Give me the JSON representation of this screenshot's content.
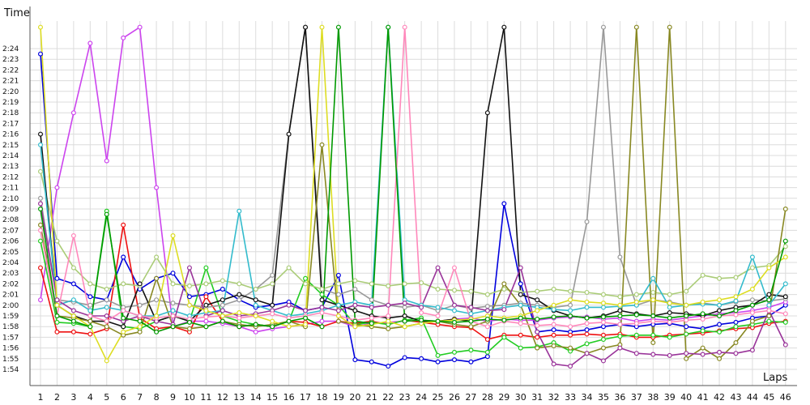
{
  "chart_data": {
    "type": "line",
    "ylabel": "Time",
    "xlabel": "Laps",
    "grid": true,
    "legend": "none",
    "y_unit": "seconds",
    "ylim": [
      6834,
      6950
    ],
    "y_ticks": [
      "1:54",
      "1:55",
      "1:56",
      "1:57",
      "1:58",
      "1:59",
      "2:00",
      "2:01",
      "2:02",
      "2:03",
      "2:04",
      "2:05",
      "2:06",
      "2:07",
      "2:08",
      "2:09",
      "2:10",
      "2:11",
      "2:12",
      "2:13",
      "2:14",
      "2:15",
      "2:16",
      "2:17",
      "2:18",
      "2:19",
      "2:20",
      "2:21",
      "2:22",
      "2:23",
      "2:24"
    ],
    "y_tick_values": [
      6834,
      6835,
      6836,
      6837,
      6838,
      6839,
      6840,
      6841,
      6842,
      6843,
      6844,
      6845,
      6846,
      6847,
      6848,
      6849,
      6850,
      6851,
      6852,
      6853,
      6854,
      6855,
      6856,
      6857,
      6858,
      6859,
      6860,
      6861,
      6862,
      6863,
      6864
    ],
    "x": [
      1,
      2,
      3,
      4,
      5,
      6,
      7,
      8,
      9,
      10,
      11,
      12,
      13,
      14,
      15,
      16,
      17,
      18,
      19,
      20,
      21,
      22,
      23,
      24,
      25,
      26,
      27,
      28,
      29,
      30,
      31,
      32,
      33,
      34,
      35,
      36,
      37,
      38,
      39,
      40,
      41,
      42,
      43,
      44,
      45,
      46
    ],
    "series": [
      {
        "color": "#0000dd",
        "values": [
          6863.5,
          6842.5,
          6842.0,
          6840.8,
          6840.5,
          6844.5,
          6841.5,
          6842.5,
          6843.0,
          6840.8,
          6841.0,
          6841.5,
          6840.5,
          6839.8,
          6840.0,
          6840.3,
          6839.5,
          6839.8,
          6842.8,
          6834.9,
          6834.7,
          6834.3,
          6835.1,
          6835.0,
          6834.7,
          6834.9,
          6834.7,
          6835.2,
          6849.5,
          6842.0,
          6837.5,
          6837.7,
          6837.5,
          6837.7,
          6838.0,
          6838.2,
          6838.0,
          6838.2,
          6838.3,
          6838.0,
          6837.8,
          6838.2,
          6838.4,
          6838.8,
          6839.0,
          6840.0
        ]
      },
      {
        "color": "#cc44ee",
        "values": [
          6840.5,
          6851.0,
          6858.0,
          6864.5,
          6853.5,
          6865.0,
          6866.0,
          6851.0,
          6838.0,
          6838.5,
          6838.5,
          6838.3,
          6838.0,
          6837.5,
          6837.8,
          6838.0,
          6838.2,
          6838.5,
          6838.5,
          6838.0,
          6838.3,
          6838.4,
          6838.5,
          6838.6,
          6838.5,
          6838.7,
          6838.8,
          6838.5,
          6838.7,
          6838.6,
          6838.6,
          6838.8,
          6838.9,
          6838.9,
          6838.7,
          6838.8,
          6838.5,
          6838.7,
          6838.6,
          6838.8,
          6839.0,
          6839.2,
          6839.3,
          6839.5,
          6839.8,
          6840.3
        ]
      },
      {
        "color": "#ee1111",
        "values": [
          6843.5,
          6837.5,
          6837.5,
          6837.3,
          6837.8,
          6847.5,
          6838.8,
          6837.8,
          6838.0,
          6837.5,
          6840.8,
          6838.5,
          6838.0,
          6838.2,
          6838.0,
          6838.5,
          6838.4,
          6838.0,
          6838.5,
          6838.3,
          6838.5,
          6838.2,
          6838.6,
          6838.4,
          6838.2,
          6838.0,
          6837.9,
          6836.8,
          6837.2,
          6837.2,
          6837.0,
          6837.2,
          6837.2,
          6837.3,
          6837.2,
          6837.3,
          6837.0,
          6837.0,
          6837.2,
          6837.3,
          6837.4,
          6837.6,
          6837.8,
          6837.9,
          6838.3,
          6838.5
        ]
      },
      {
        "color": "#22cc22",
        "values": [
          6846.0,
          6838.4,
          6838.3,
          6838.0,
          6848.8,
          6838.0,
          6837.8,
          6838.5,
          6839.0,
          6838.5,
          6843.5,
          6839.0,
          6838.5,
          6838.2,
          6838.0,
          6838.5,
          6842.5,
          6841.0,
          6840.0,
          6838.2,
          6838.4,
          6838.2,
          6838.6,
          6838.8,
          6835.3,
          6835.6,
          6835.8,
          6835.6,
          6837.0,
          6836.0,
          6836.1,
          6836.5,
          6835.7,
          6836.4,
          6836.8,
          6837.1,
          6837.2,
          6837.2,
          6837.0,
          6837.3,
          6837.6,
          6837.5,
          6838.0,
          6838.2,
          6838.5,
          6838.4
        ]
      },
      {
        "color": "#999999",
        "values": [
          6850.0,
          6840.5,
          6840.3,
          6840.0,
          6840.5,
          6839.8,
          6840.0,
          6840.5,
          6840.2,
          6840.0,
          6839.8,
          6840.0,
          6840.5,
          6841.5,
          6842.8,
          6856.0,
          6866.0,
          6841.5,
          6841.0,
          6841.5,
          6840.5,
          6840.0,
          6839.8,
          6840.0,
          6839.5,
          6840.0,
          6839.7,
          6839.9,
          6840.0,
          6840.2,
          6840.0,
          6839.8,
          6840.0,
          6847.8,
          6866.0,
          6844.5,
          6840.0,
          6840.5,
          6840.3,
          6840.0,
          6840.2,
          6840.0,
          6840.3,
          6840.5,
          6840.4,
          6840.6
        ]
      },
      {
        "color": "#aacc77",
        "values": [
          6852.5,
          6846.0,
          6843.5,
          6842.0,
          6841.5,
          6842.0,
          6841.8,
          6844.5,
          6842.0,
          6841.8,
          6842.0,
          6842.3,
          6842.0,
          6841.5,
          6842.0,
          6843.5,
          6842.0,
          6841.5,
          6842.0,
          6842.3,
          6842.0,
          6841.8,
          6842.0,
          6842.1,
          6841.5,
          6841.4,
          6841.3,
          6841.0,
          6841.5,
          6841.2,
          6841.3,
          6841.5,
          6841.3,
          6841.2,
          6841.0,
          6840.8,
          6841.0,
          6841.2,
          6841.0,
          6841.3,
          6842.8,
          6842.5,
          6842.6,
          6843.5,
          6843.7,
          6845.5
        ]
      },
      {
        "color": "#111111",
        "values": [
          6856.0,
          6840.0,
          6839.0,
          6838.5,
          6838.5,
          6838.0,
          6842.0,
          6838.5,
          6839.0,
          6838.5,
          6840.0,
          6840.5,
          6841.0,
          6840.5,
          6840.0,
          6856.0,
          6866.0,
          6840.5,
          6840.0,
          6839.5,
          6839.0,
          6838.8,
          6839.0,
          6838.5,
          6838.5,
          6838.7,
          6838.5,
          6858.0,
          6866.0,
          6841.0,
          6840.5,
          6839.5,
          6839.0,
          6838.8,
          6839.0,
          6839.5,
          6839.2,
          6839.0,
          6839.3,
          6839.2,
          6839.0,
          6839.5,
          6839.8,
          6840.0,
          6841.0,
          6840.8
        ]
      },
      {
        "color": "#888822",
        "values": [
          6847.5,
          6839.0,
          6838.8,
          6838.5,
          6838.0,
          6837.2,
          6837.5,
          6842.5,
          6838.0,
          6837.8,
          6838.0,
          6838.5,
          6838.2,
          6838.0,
          6838.2,
          6838.5,
          6838.0,
          6855.0,
          6838.5,
          6838.2,
          6838.0,
          6837.8,
          6838.0,
          6838.3,
          6838.5,
          6838.2,
          6838.0,
          6838.5,
          6842.0,
          6840.0,
          6836.0,
          6836.2,
          6836.0,
          6835.5,
          6836.0,
          6836.3,
          6866.0,
          6836.5,
          6866.0,
          6835.0,
          6836.0,
          6835.0,
          6836.5,
          6838.5,
          6839.0,
          6849.0
        ]
      },
      {
        "color": "#33bbcc",
        "values": [
          6855.0,
          6840.0,
          6840.5,
          6839.5,
          6839.8,
          6839.5,
          6839.0,
          6839.0,
          6839.5,
          6839.0,
          6839.3,
          6839.5,
          6848.8,
          6840.0,
          6839.5,
          6839.0,
          6839.2,
          6839.5,
          6840.0,
          6840.3,
          6840.0,
          6866.0,
          6840.5,
          6840.0,
          6839.8,
          6839.5,
          6839.2,
          6839.5,
          6839.8,
          6840.0,
          6839.8,
          6839.6,
          6839.5,
          6839.8,
          6839.8,
          6839.9,
          6840.0,
          6842.5,
          6839.8,
          6840.0,
          6840.1,
          6840.0,
          6840.4,
          6844.5,
          6840.0,
          6842.0
        ]
      },
      {
        "color": "#993399",
        "values": [
          6849.5,
          6840.5,
          6839.5,
          6839.0,
          6839.0,
          6838.5,
          6839.0,
          6838.5,
          6838.2,
          6843.5,
          6839.0,
          6839.5,
          6839.0,
          6839.2,
          6839.5,
          6840.0,
          6839.5,
          6839.8,
          6839.5,
          6840.0,
          6839.8,
          6840.0,
          6840.2,
          6839.8,
          6843.5,
          6840.0,
          6839.8,
          6839.5,
          6839.6,
          6843.5,
          6837.5,
          6834.5,
          6834.3,
          6835.5,
          6834.8,
          6836.0,
          6835.5,
          6835.4,
          6835.3,
          6835.5,
          6835.4,
          6835.6,
          6835.5,
          6835.8,
          6839.5,
          6836.3
        ]
      },
      {
        "color": "#ff88bb",
        "values": [
          6847.0,
          6839.0,
          6846.5,
          6839.0,
          6838.5,
          6839.5,
          6839.0,
          6838.8,
          6839.0,
          6838.7,
          6838.9,
          6839.0,
          6838.8,
          6839.0,
          6839.2,
          6838.8,
          6839.0,
          6839.3,
          6839.0,
          6838.6,
          6838.8,
          6839.0,
          6866.0,
          6839.3,
          6839.0,
          6843.5,
          6838.5,
          6838.0,
          6838.5,
          6838.3,
          6838.1,
          6838.2,
          6838.0,
          6838.3,
          6838.4,
          6838.2,
          6838.3,
          6838.5,
          6838.4,
          6838.6,
          6838.7,
          6839.0,
          6839.1,
          6839.3,
          6839.5,
          6839.2
        ]
      },
      {
        "color": "#dddd22",
        "values": [
          6866.0,
          6840.0,
          6839.0,
          6838.0,
          6834.8,
          6837.5,
          6838.0,
          6839.0,
          6846.5,
          6840.0,
          6839.5,
          6839.0,
          6839.3,
          6839.0,
          6838.5,
          6838.0,
          6838.2,
          6866.0,
          6839.0,
          6838.0,
          6838.2,
          6838.5,
          6838.0,
          6838.3,
          6838.5,
          6838.6,
          6838.7,
          6839.0,
          6838.8,
          6839.0,
          6839.5,
          6840.0,
          6840.5,
          6840.3,
          6840.2,
          6840.0,
          6840.3,
          6840.5,
          6840.2,
          6840.0,
          6840.3,
          6840.5,
          6840.8,
          6841.5,
          6843.5,
          6844.5
        ]
      },
      {
        "color": "#009900",
        "values": [
          6849.0,
          6839.0,
          6838.5,
          6838.0,
          6848.5,
          6838.8,
          6838.5,
          6837.5,
          6838.0,
          6838.4,
          6838.0,
          6838.5,
          6838.0,
          6838.2,
          6838.0,
          6838.5,
          6838.8,
          6838.0,
          6866.0,
          6838.5,
          6838.3,
          6866.0,
          6838.5,
          6838.6,
          6838.5,
          6838.4,
          6838.5,
          6838.7,
          6838.6,
          6838.8,
          6838.7,
          6838.9,
          6839.0,
          6838.8,
          6838.9,
          6839.0,
          6839.1,
          6839.0,
          6838.8,
          6839.0,
          6839.2,
          6839.0,
          6839.5,
          6840.0,
          6840.5,
          6846.0
        ]
      }
    ]
  }
}
